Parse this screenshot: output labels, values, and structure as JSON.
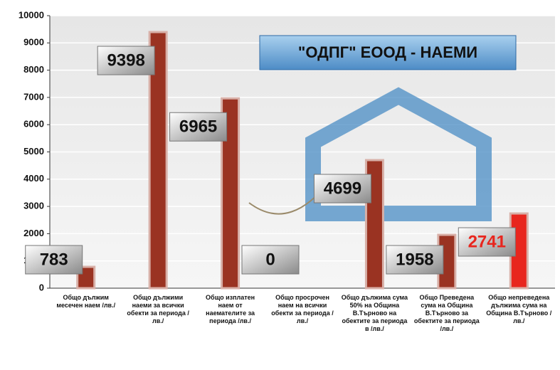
{
  "chart_data": {
    "type": "bar",
    "title": "\"ОДПГ\" ЕООД - НАЕМИ",
    "categories": [
      "Общо дължим месечен наем /лв./",
      "Общо дължими наеми за всички обекти за периода /лв./",
      "Общо изплатен наем от наемателите за периода /лв./",
      "Общо просрочен наем на всички обекти за периода /лв./",
      "Общо дължима сума 50% на Община В.Търново на обектите за периода в /лв./",
      "Общо Преведена сума на Община В.Търново за обектите за периода /лв./",
      "Общо непреведена дължима сума на Община В.Търново /лв./"
    ],
    "values": [
      783,
      9398,
      6965,
      0,
      4699,
      1958,
      2741
    ],
    "colors": [
      "#9a3322",
      "#9a3322",
      "#9a3322",
      "#9a3322",
      "#9a3322",
      "#9a3322",
      "#e8261e"
    ],
    "label_colors": [
      "#111111",
      "#111111",
      "#111111",
      "#111111",
      "#111111",
      "#111111",
      "#e8261e"
    ],
    "ylim": [
      0,
      10000
    ],
    "yticks": [
      0,
      1000,
      2000,
      3000,
      4000,
      5000,
      6000,
      7000,
      8000,
      9000,
      10000
    ],
    "grid": true
  }
}
